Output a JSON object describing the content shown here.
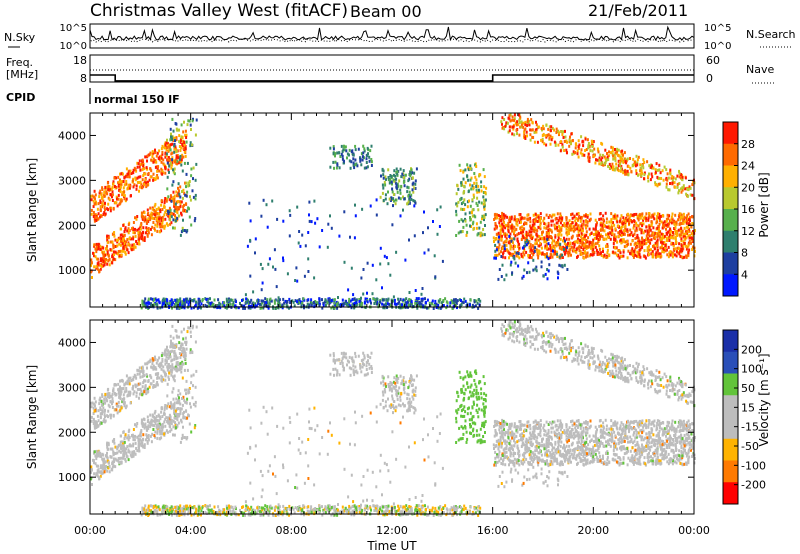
{
  "header": {
    "station": "Christmas Valley West (fitACF)",
    "beam": "Beam 00",
    "date": "21/Feb/2011"
  },
  "labels": {
    "nsky": "N.Sky",
    "nsearch": "N.Search",
    "freq_line1": "Freq.",
    "freq_line2": "[MHz]",
    "nave": "Nave",
    "cpid": "CPID",
    "cpid_value": "normal 150 IF"
  },
  "colors": {
    "power_scale": [
      "#0018ff",
      "#1e3fa0",
      "#2f7f6e",
      "#57b04c",
      "#b8c92f",
      "#ffb000",
      "#ff6a00",
      "#ff1800"
    ],
    "velocity_scale": [
      "#ff0000",
      "#ff7a00",
      "#ffb300",
      "#bdbdbd",
      "#bdbdbd",
      "#62c43a",
      "#2a4fb8",
      "#1a2fa8"
    ]
  },
  "chart_data": [
    {
      "type": "line",
      "name": "noise-panel",
      "ylabel_left": "N.Sky",
      "ylabel_right": "N.Search",
      "left_ticks": [
        "10^5",
        "10^0"
      ],
      "right_ticks": [
        "10^5",
        "10^0"
      ],
      "xlim": [
        0,
        24
      ]
    },
    {
      "type": "line",
      "name": "frequency-panel",
      "ylabel_left": "Freq. [MHz]",
      "ylabel_right": "Nave",
      "left_ticks": [
        18,
        8
      ],
      "right_ticks": [
        60,
        0
      ],
      "xlim": [
        0,
        24
      ],
      "series": [
        {
          "label": "frequency",
          "x": [
            0,
            1.0,
            1.0,
            16.0,
            16.0,
            24
          ],
          "y": [
            10.6,
            10.6,
            8.4,
            8.4,
            10.6,
            10.6
          ]
        }
      ]
    },
    {
      "type": "heatmap",
      "name": "power-panel",
      "ylabel": "Slant Range [km]",
      "xlim": [
        0,
        24
      ],
      "ylim": [
        180,
        4500
      ],
      "yticks": [
        1000,
        2000,
        3000,
        4000
      ],
      "colorbar_label": "Power [dB]",
      "colorbar_ticks": [
        "28",
        "24",
        "20",
        "16",
        "12",
        "8",
        "4"
      ]
    },
    {
      "type": "heatmap",
      "name": "velocity-panel",
      "ylabel": "Slant Range [km]",
      "xlabel": "Time UT",
      "xlim": [
        0,
        24
      ],
      "ylim": [
        180,
        4500
      ],
      "yticks": [
        1000,
        2000,
        3000,
        4000
      ],
      "xticks": [
        "00:00",
        "04:00",
        "08:00",
        "12:00",
        "16:00",
        "20:00",
        "00:00"
      ],
      "colorbar_label": "Velocity [m s⁻¹]",
      "colorbar_ticks": [
        "200",
        "100",
        "50",
        "15",
        "-15",
        "-50",
        "-100",
        "-200"
      ]
    }
  ]
}
